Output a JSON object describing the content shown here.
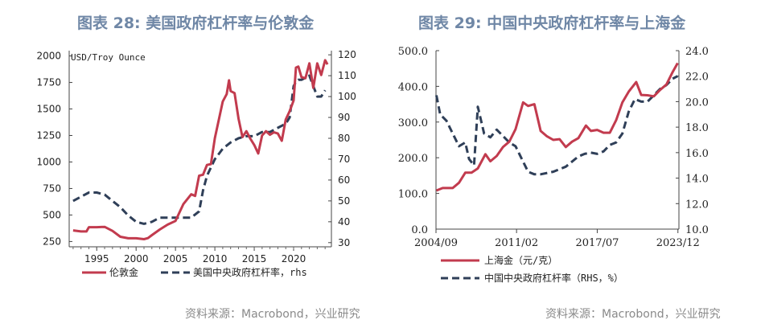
{
  "titles": {
    "left": "图表 28: 美国政府杠杆率与伦敦金",
    "right": "图表 29: 中国中央政府杠杆率与上海金"
  },
  "sources": {
    "left": "资料来源：Macrobond，兴业研究",
    "right": "资料来源：Macrobond，兴业研究"
  },
  "colors": {
    "gold": "#c23b4e",
    "leverage": "#2f3f58"
  },
  "chart_data": [
    {
      "type": "line",
      "unit_label": "USD/Troy Ounce",
      "xlim": [
        1991.5,
        2024.8
      ],
      "ylim": [
        200,
        2050
      ],
      "y2lim": [
        28,
        122
      ],
      "x_ticks": [
        1995,
        2000,
        2005,
        2010,
        2015,
        2020
      ],
      "y_ticks": [
        "2000",
        "1750",
        "1500",
        "1250",
        "1000",
        "750",
        "500",
        "250"
      ],
      "y2_ticks": [
        "120",
        "110",
        "100",
        "90",
        "80",
        "70",
        "60",
        "50",
        "40",
        "30"
      ],
      "series": [
        {
          "name": "伦敦金",
          "axis": "left",
          "style": "solid",
          "x": [
            1992,
            1993,
            1993.7,
            1994,
            1995,
            1996,
            1997,
            1998,
            1999,
            2000,
            2001,
            2001.5,
            2002,
            2003,
            2004,
            2005,
            2006,
            2007,
            2007.5,
            2008,
            2008.5,
            2009,
            2009.5,
            2010,
            2011,
            2011.5,
            2011.8,
            2012,
            2012.5,
            2013,
            2013.5,
            2014,
            2014.5,
            2015,
            2015.5,
            2016,
            2016.5,
            2017,
            2017.5,
            2018,
            2018.5,
            2019,
            2019.5,
            2020,
            2020.3,
            2020.6,
            2021,
            2021.5,
            2022,
            2022.5,
            2023,
            2023.5,
            2024,
            2024.3
          ],
          "y": [
            355,
            345,
            345,
            385,
            385,
            388,
            350,
            295,
            280,
            280,
            272,
            282,
            310,
            363,
            409,
            444,
            603,
            695,
            680,
            870,
            880,
            972,
            980,
            1225,
            1570,
            1640,
            1770,
            1669,
            1650,
            1410,
            1235,
            1290,
            1220,
            1160,
            1080,
            1250,
            1290,
            1257,
            1280,
            1268,
            1200,
            1400,
            1480,
            1580,
            1890,
            1900,
            1800,
            1790,
            1930,
            1700,
            1930,
            1820,
            1960,
            1920
          ]
        },
        {
          "name": "美国中央政府杠杆率，rhs",
          "axis": "right",
          "style": "dashed",
          "x": [
            1992,
            1993,
            1994,
            1995,
            1996,
            1997,
            1998,
            1999,
            2000,
            2001,
            2002,
            2003,
            2004,
            2005,
            2006,
            2007,
            2008,
            2008.5,
            2009,
            2010,
            2011,
            2012,
            2013,
            2014,
            2015,
            2016,
            2017,
            2018,
            2019,
            2019.5,
            2020,
            2020.3,
            2020.6,
            2021,
            2022,
            2022.5,
            2023,
            2023.5,
            2024
          ],
          "y": [
            50,
            52,
            54,
            54,
            53,
            50,
            47,
            43,
            40,
            39,
            40,
            42,
            42,
            42,
            42,
            42,
            45,
            55,
            62,
            70,
            75,
            78,
            80,
            81,
            81,
            83,
            83,
            85,
            87,
            90,
            105,
            107,
            108,
            108,
            110,
            105,
            100,
            100,
            103
          ]
        }
      ]
    },
    {
      "type": "line",
      "xlim": [
        2004.67,
        2024.0
      ],
      "ylim": [
        0,
        500
      ],
      "y2lim": [
        10,
        24
      ],
      "x_ticks": [
        "2004/09",
        "2011/02",
        "2017/07",
        "2023/12"
      ],
      "y_ticks": [
        "500.0",
        "400.0",
        "300.0",
        "200.0",
        "100.0",
        "0.0"
      ],
      "y2_ticks": [
        "24.0",
        "22.0",
        "20.0",
        "18.0",
        "16.0",
        "14.0",
        "12.0",
        "10.0"
      ],
      "series": [
        {
          "name": "上海金（元/克）",
          "axis": "left",
          "style": "solid",
          "x": [
            2004.7,
            2005.2,
            2006,
            2006.5,
            2007,
            2007.5,
            2008,
            2008.6,
            2009,
            2009.5,
            2010,
            2010.5,
            2011,
            2011.6,
            2012,
            2012.5,
            2013,
            2013.5,
            2014,
            2014.5,
            2015,
            2015.5,
            2016,
            2016.6,
            2017,
            2017.5,
            2018,
            2018.5,
            2019,
            2019.5,
            2020,
            2020.6,
            2021,
            2021.5,
            2022,
            2022.5,
            2023,
            2023.5,
            2023.9
          ],
          "y": [
            108,
            115,
            115,
            130,
            158,
            158,
            170,
            210,
            190,
            205,
            230,
            245,
            280,
            355,
            345,
            350,
            275,
            260,
            250,
            252,
            230,
            245,
            255,
            290,
            275,
            278,
            270,
            270,
            305,
            355,
            385,
            412,
            376,
            375,
            372,
            390,
            405,
            440,
            465
          ]
        },
        {
          "name": "中国中央政府杠杆率（RHS，%）",
          "axis": "right",
          "style": "dashed",
          "x": [
            2004.7,
            2005,
            2005.5,
            2006,
            2006.5,
            2007,
            2007.3,
            2007.7,
            2008,
            2008.5,
            2009,
            2009.5,
            2010,
            2010.5,
            2011,
            2011.5,
            2012,
            2012.5,
            2013,
            2014,
            2015,
            2016,
            2016.5,
            2017,
            2017.5,
            2018,
            2018.5,
            2019,
            2019.5,
            2020,
            2020.5,
            2021,
            2021.5,
            2022,
            2022.5,
            2023,
            2023.5,
            2023.9
          ],
          "y": [
            20.5,
            19,
            18.5,
            17.5,
            16.5,
            16.8,
            15.5,
            15,
            19.6,
            17.5,
            17.2,
            17.8,
            17.3,
            16.8,
            16.5,
            15.5,
            14.5,
            14.3,
            14.3,
            14.5,
            14.9,
            15.7,
            15.9,
            16.0,
            15.9,
            16.1,
            16.6,
            16.8,
            17.5,
            19.2,
            20.2,
            20,
            20,
            20.5,
            21,
            21.3,
            21.8,
            22
          ]
        }
      ]
    }
  ],
  "left_chart": {
    "unit_label": "USD/Troy Ounce",
    "legend_gold": "伦敦金",
    "legend_lev": "美国中央政府杠杆率，rhs"
  },
  "right_chart": {
    "legend_gold": "上海金（元/克）",
    "legend_lev": "中国中央政府杠杆率（RHS，%）"
  }
}
